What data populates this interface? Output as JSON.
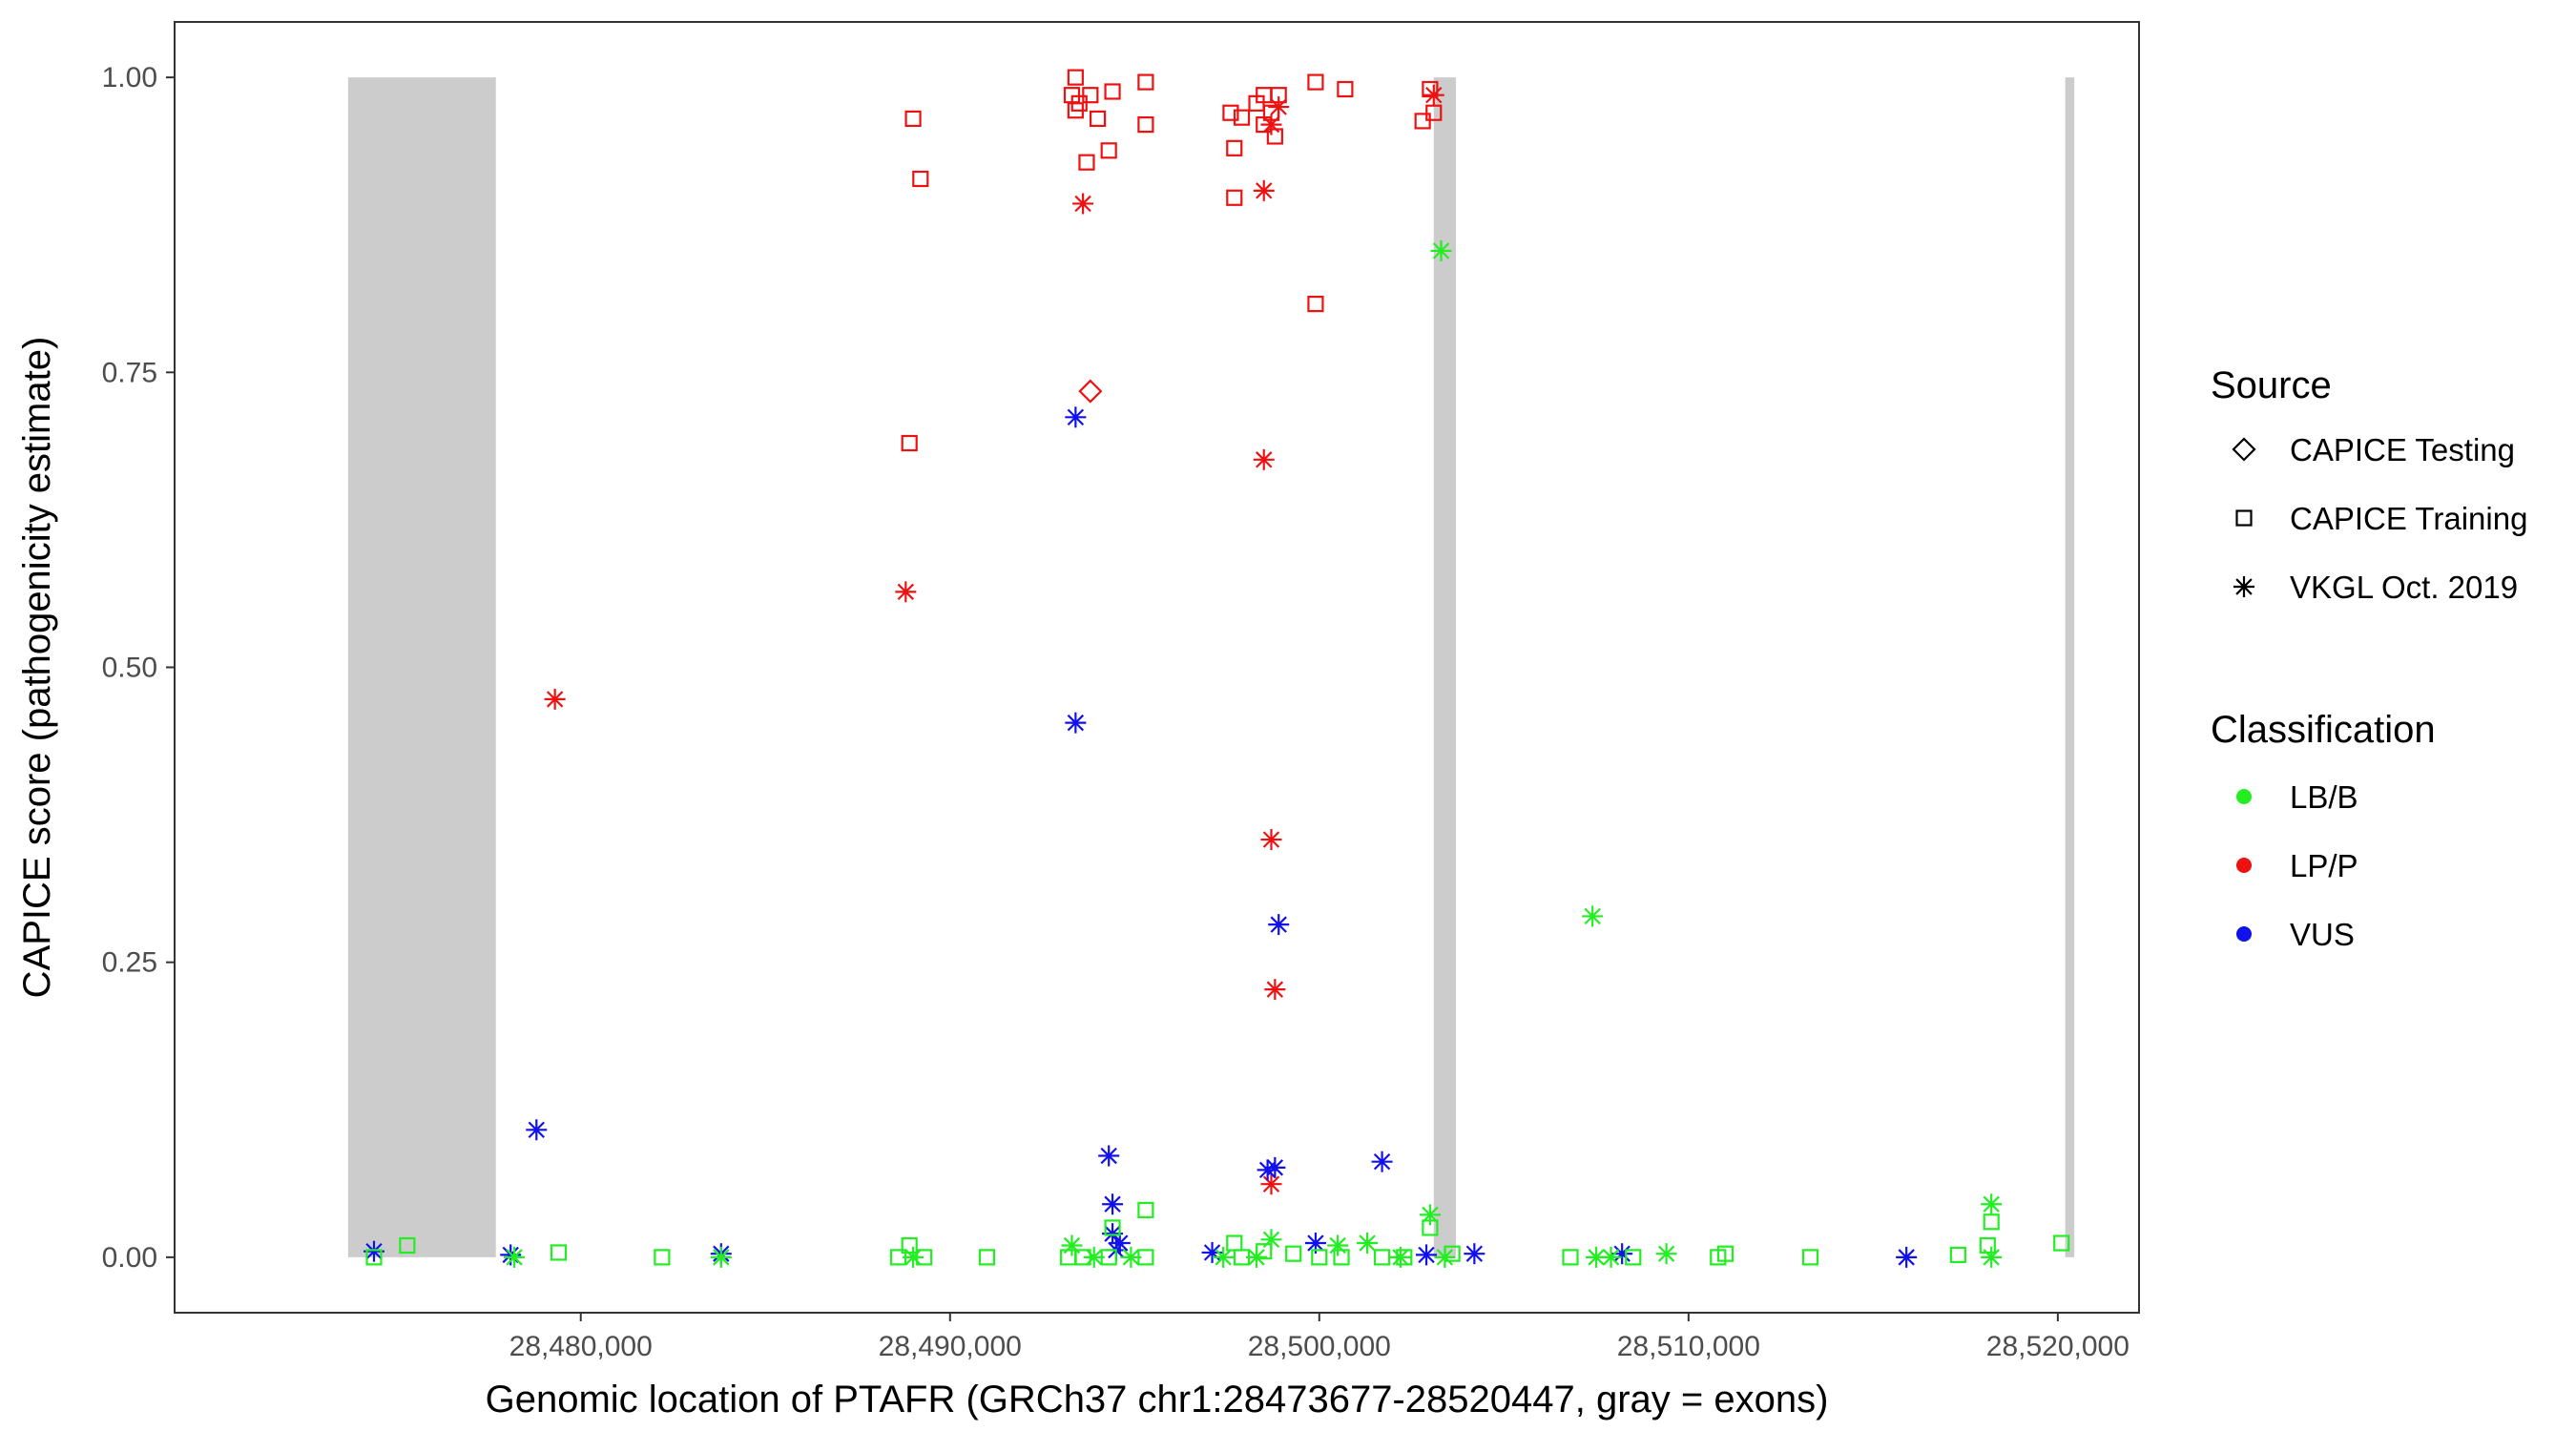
{
  "chart_data": {
    "type": "scatter",
    "xlabel": "Genomic location of PTAFR (GRCh37 chr1:28473677-28520447, gray = exons)",
    "ylabel": "CAPICE score (pathogenicity estimate)",
    "xlim": [
      28469000,
      28522200
    ],
    "ylim": [
      -0.047,
      1.047
    ],
    "x_ticks": [
      28480000,
      28490000,
      28500000,
      28510000,
      28520000
    ],
    "x_tick_labels": [
      "28,480,000",
      "28,490,000",
      "28,500,000",
      "28,510,000",
      "28,520,000"
    ],
    "y_ticks": [
      0,
      0.25,
      0.5,
      0.75,
      1.0
    ],
    "y_tick_labels": [
      "0.00",
      "0.25",
      "0.50",
      "0.75",
      "1.00"
    ],
    "grid": false,
    "exons": [
      {
        "start": 28473700,
        "end": 28477700
      },
      {
        "start": 28503100,
        "end": 28503700
      },
      {
        "start": 28520200,
        "end": 28520447
      }
    ],
    "colors": {
      "LB/B": "#22ee22",
      "LP/P": "#ee1111",
      "VUS": "#1111ee",
      "exon": "#cccccc"
    },
    "legend": {
      "placement": "right",
      "source_title": "Source",
      "source_items": [
        {
          "label": "CAPICE Testing",
          "shape": "diamond"
        },
        {
          "label": "CAPICE Training",
          "shape": "square"
        },
        {
          "label": "VKGL Oct. 2019",
          "shape": "asterisk"
        }
      ],
      "class_title": "Classification",
      "class_items": [
        {
          "label": "LB/B",
          "key": "LB/B"
        },
        {
          "label": "LP/P",
          "key": "LP/P"
        },
        {
          "label": "VUS",
          "key": "VUS"
        }
      ]
    },
    "points": [
      {
        "x": 28493400,
        "y": 1.0,
        "s": "square",
        "c": "LP/P"
      },
      {
        "x": 28493300,
        "y": 0.985,
        "s": "square",
        "c": "LP/P"
      },
      {
        "x": 28493500,
        "y": 0.978,
        "s": "square",
        "c": "LP/P"
      },
      {
        "x": 28493400,
        "y": 0.972,
        "s": "square",
        "c": "LP/P"
      },
      {
        "x": 28493800,
        "y": 0.985,
        "s": "square",
        "c": "LP/P"
      },
      {
        "x": 28494000,
        "y": 0.965,
        "s": "square",
        "c": "LP/P"
      },
      {
        "x": 28494400,
        "y": 0.988,
        "s": "square",
        "c": "LP/P"
      },
      {
        "x": 28495300,
        "y": 0.996,
        "s": "square",
        "c": "LP/P"
      },
      {
        "x": 28495300,
        "y": 0.96,
        "s": "square",
        "c": "LP/P"
      },
      {
        "x": 28489000,
        "y": 0.965,
        "s": "square",
        "c": "LP/P"
      },
      {
        "x": 28489200,
        "y": 0.914,
        "s": "square",
        "c": "LP/P"
      },
      {
        "x": 28493700,
        "y": 0.928,
        "s": "square",
        "c": "LP/P"
      },
      {
        "x": 28494300,
        "y": 0.938,
        "s": "square",
        "c": "LP/P"
      },
      {
        "x": 28493600,
        "y": 0.893,
        "s": "asterisk",
        "c": "LP/P"
      },
      {
        "x": 28497600,
        "y": 0.97,
        "s": "square",
        "c": "LP/P"
      },
      {
        "x": 28497900,
        "y": 0.966,
        "s": "square",
        "c": "LP/P"
      },
      {
        "x": 28498300,
        "y": 0.978,
        "s": "square",
        "c": "LP/P"
      },
      {
        "x": 28498500,
        "y": 0.985,
        "s": "square",
        "c": "LP/P"
      },
      {
        "x": 28498700,
        "y": 0.97,
        "s": "square",
        "c": "LP/P"
      },
      {
        "x": 28498900,
        "y": 0.985,
        "s": "square",
        "c": "LP/P"
      },
      {
        "x": 28498500,
        "y": 0.96,
        "s": "square",
        "c": "LP/P"
      },
      {
        "x": 28498800,
        "y": 0.95,
        "s": "square",
        "c": "LP/P"
      },
      {
        "x": 28498700,
        "y": 0.96,
        "s": "asterisk",
        "c": "LP/P"
      },
      {
        "x": 28498900,
        "y": 0.975,
        "s": "asterisk",
        "c": "LP/P"
      },
      {
        "x": 28497700,
        "y": 0.94,
        "s": "square",
        "c": "LP/P"
      },
      {
        "x": 28497700,
        "y": 0.898,
        "s": "square",
        "c": "LP/P"
      },
      {
        "x": 28498500,
        "y": 0.904,
        "s": "asterisk",
        "c": "LP/P"
      },
      {
        "x": 28499900,
        "y": 0.996,
        "s": "square",
        "c": "LP/P"
      },
      {
        "x": 28500700,
        "y": 0.99,
        "s": "square",
        "c": "LP/P"
      },
      {
        "x": 28503000,
        "y": 0.99,
        "s": "square",
        "c": "LP/P"
      },
      {
        "x": 28503100,
        "y": 0.985,
        "s": "asterisk",
        "c": "LP/P"
      },
      {
        "x": 28503100,
        "y": 0.97,
        "s": "square",
        "c": "LP/P"
      },
      {
        "x": 28502800,
        "y": 0.963,
        "s": "square",
        "c": "LP/P"
      },
      {
        "x": 28499900,
        "y": 0.808,
        "s": "square",
        "c": "LP/P"
      },
      {
        "x": 28493800,
        "y": 0.734,
        "s": "diamond",
        "c": "LP/P"
      },
      {
        "x": 28488900,
        "y": 0.69,
        "s": "square",
        "c": "LP/P"
      },
      {
        "x": 28498500,
        "y": 0.676,
        "s": "asterisk",
        "c": "LP/P"
      },
      {
        "x": 28488800,
        "y": 0.564,
        "s": "asterisk",
        "c": "LP/P"
      },
      {
        "x": 28479300,
        "y": 0.473,
        "s": "asterisk",
        "c": "LP/P"
      },
      {
        "x": 28498700,
        "y": 0.354,
        "s": "asterisk",
        "c": "LP/P"
      },
      {
        "x": 28498800,
        "y": 0.227,
        "s": "asterisk",
        "c": "LP/P"
      },
      {
        "x": 28498700,
        "y": 0.062,
        "s": "asterisk",
        "c": "LP/P"
      },
      {
        "x": 28493400,
        "y": 0.712,
        "s": "asterisk",
        "c": "VUS"
      },
      {
        "x": 28493400,
        "y": 0.453,
        "s": "asterisk",
        "c": "VUS"
      },
      {
        "x": 28498900,
        "y": 0.282,
        "s": "asterisk",
        "c": "VUS"
      },
      {
        "x": 28478800,
        "y": 0.108,
        "s": "asterisk",
        "c": "VUS"
      },
      {
        "x": 28494300,
        "y": 0.086,
        "s": "asterisk",
        "c": "VUS"
      },
      {
        "x": 28501700,
        "y": 0.081,
        "s": "asterisk",
        "c": "VUS"
      },
      {
        "x": 28498600,
        "y": 0.074,
        "s": "asterisk",
        "c": "VUS"
      },
      {
        "x": 28498800,
        "y": 0.076,
        "s": "asterisk",
        "c": "VUS"
      },
      {
        "x": 28494400,
        "y": 0.045,
        "s": "asterisk",
        "c": "VUS"
      },
      {
        "x": 28494400,
        "y": 0.02,
        "s": "asterisk",
        "c": "VUS"
      },
      {
        "x": 28494600,
        "y": 0.012,
        "s": "asterisk",
        "c": "VUS"
      },
      {
        "x": 28494500,
        "y": 0.006,
        "s": "asterisk",
        "c": "VUS"
      },
      {
        "x": 28474400,
        "y": 0.005,
        "s": "asterisk",
        "c": "VUS"
      },
      {
        "x": 28478100,
        "y": 0.002,
        "s": "asterisk",
        "c": "VUS"
      },
      {
        "x": 28483800,
        "y": 0.003,
        "s": "asterisk",
        "c": "VUS"
      },
      {
        "x": 28497100,
        "y": 0.004,
        "s": "asterisk",
        "c": "VUS"
      },
      {
        "x": 28499900,
        "y": 0.012,
        "s": "asterisk",
        "c": "VUS"
      },
      {
        "x": 28502900,
        "y": 0.002,
        "s": "asterisk",
        "c": "VUS"
      },
      {
        "x": 28504200,
        "y": 0.003,
        "s": "asterisk",
        "c": "VUS"
      },
      {
        "x": 28508200,
        "y": 0.003,
        "s": "asterisk",
        "c": "VUS"
      },
      {
        "x": 28515900,
        "y": 0.0,
        "s": "asterisk",
        "c": "VUS"
      },
      {
        "x": 28503300,
        "y": 0.853,
        "s": "asterisk",
        "c": "LB/B"
      },
      {
        "x": 28507400,
        "y": 0.289,
        "s": "asterisk",
        "c": "LB/B"
      },
      {
        "x": 28518200,
        "y": 0.045,
        "s": "asterisk",
        "c": "LB/B"
      },
      {
        "x": 28518200,
        "y": 0.03,
        "s": "square",
        "c": "LB/B"
      },
      {
        "x": 28518100,
        "y": 0.01,
        "s": "square",
        "c": "LB/B"
      },
      {
        "x": 28518200,
        "y": 0.0,
        "s": "asterisk",
        "c": "LB/B"
      },
      {
        "x": 28520100,
        "y": 0.012,
        "s": "square",
        "c": "LB/B"
      },
      {
        "x": 28517300,
        "y": 0.002,
        "s": "square",
        "c": "LB/B"
      },
      {
        "x": 28513300,
        "y": 0.0,
        "s": "square",
        "c": "LB/B"
      },
      {
        "x": 28511000,
        "y": 0.003,
        "s": "square",
        "c": "LB/B"
      },
      {
        "x": 28510800,
        "y": 0.0,
        "s": "square",
        "c": "LB/B"
      },
      {
        "x": 28509400,
        "y": 0.003,
        "s": "asterisk",
        "c": "LB/B"
      },
      {
        "x": 28508500,
        "y": 0.0,
        "s": "square",
        "c": "LB/B"
      },
      {
        "x": 28507900,
        "y": 0.0,
        "s": "asterisk",
        "c": "LB/B"
      },
      {
        "x": 28507500,
        "y": 0.0,
        "s": "asterisk",
        "c": "LB/B"
      },
      {
        "x": 28506800,
        "y": 0.0,
        "s": "square",
        "c": "LB/B"
      },
      {
        "x": 28503000,
        "y": 0.036,
        "s": "asterisk",
        "c": "LB/B"
      },
      {
        "x": 28503000,
        "y": 0.025,
        "s": "square",
        "c": "LB/B"
      },
      {
        "x": 28503600,
        "y": 0.003,
        "s": "square",
        "c": "LB/B"
      },
      {
        "x": 28503400,
        "y": 0.0,
        "s": "asterisk",
        "c": "LB/B"
      },
      {
        "x": 28502300,
        "y": 0.0,
        "s": "square",
        "c": "LB/B"
      },
      {
        "x": 28502200,
        "y": 0.0,
        "s": "asterisk",
        "c": "LB/B"
      },
      {
        "x": 28501700,
        "y": 0.0,
        "s": "square",
        "c": "LB/B"
      },
      {
        "x": 28501300,
        "y": 0.012,
        "s": "asterisk",
        "c": "LB/B"
      },
      {
        "x": 28500500,
        "y": 0.01,
        "s": "asterisk",
        "c": "LB/B"
      },
      {
        "x": 28500600,
        "y": 0.0,
        "s": "square",
        "c": "LB/B"
      },
      {
        "x": 28500000,
        "y": 0.0,
        "s": "square",
        "c": "LB/B"
      },
      {
        "x": 28499300,
        "y": 0.003,
        "s": "square",
        "c": "LB/B"
      },
      {
        "x": 28498700,
        "y": 0.015,
        "s": "asterisk",
        "c": "LB/B"
      },
      {
        "x": 28498500,
        "y": 0.005,
        "s": "square",
        "c": "LB/B"
      },
      {
        "x": 28498300,
        "y": 0.0,
        "s": "asterisk",
        "c": "LB/B"
      },
      {
        "x": 28497900,
        "y": 0.0,
        "s": "square",
        "c": "LB/B"
      },
      {
        "x": 28497700,
        "y": 0.012,
        "s": "square",
        "c": "LB/B"
      },
      {
        "x": 28497400,
        "y": 0.0,
        "s": "asterisk",
        "c": "LB/B"
      },
      {
        "x": 28495300,
        "y": 0.04,
        "s": "square",
        "c": "LB/B"
      },
      {
        "x": 28495300,
        "y": 0.0,
        "s": "square",
        "c": "LB/B"
      },
      {
        "x": 28494900,
        "y": 0.0,
        "s": "asterisk",
        "c": "LB/B"
      },
      {
        "x": 28494400,
        "y": 0.025,
        "s": "square",
        "c": "LB/B"
      },
      {
        "x": 28494300,
        "y": 0.0,
        "s": "square",
        "c": "LB/B"
      },
      {
        "x": 28493900,
        "y": 0.0,
        "s": "asterisk",
        "c": "LB/B"
      },
      {
        "x": 28493600,
        "y": 0.0,
        "s": "square",
        "c": "LB/B"
      },
      {
        "x": 28493300,
        "y": 0.01,
        "s": "asterisk",
        "c": "LB/B"
      },
      {
        "x": 28493200,
        "y": 0.0,
        "s": "square",
        "c": "LB/B"
      },
      {
        "x": 28491000,
        "y": 0.0,
        "s": "square",
        "c": "LB/B"
      },
      {
        "x": 28489300,
        "y": 0.0,
        "s": "square",
        "c": "LB/B"
      },
      {
        "x": 28488900,
        "y": 0.01,
        "s": "square",
        "c": "LB/B"
      },
      {
        "x": 28489000,
        "y": 0.0,
        "s": "asterisk",
        "c": "LB/B"
      },
      {
        "x": 28488600,
        "y": 0.0,
        "s": "square",
        "c": "LB/B"
      },
      {
        "x": 28483800,
        "y": 0.0,
        "s": "asterisk",
        "c": "LB/B"
      },
      {
        "x": 28482200,
        "y": 0.0,
        "s": "square",
        "c": "LB/B"
      },
      {
        "x": 28479400,
        "y": 0.004,
        "s": "square",
        "c": "LB/B"
      },
      {
        "x": 28478200,
        "y": 0.0,
        "s": "asterisk",
        "c": "LB/B"
      },
      {
        "x": 28475300,
        "y": 0.01,
        "s": "square",
        "c": "LB/B"
      },
      {
        "x": 28474400,
        "y": 0.0,
        "s": "square",
        "c": "LB/B"
      }
    ]
  }
}
